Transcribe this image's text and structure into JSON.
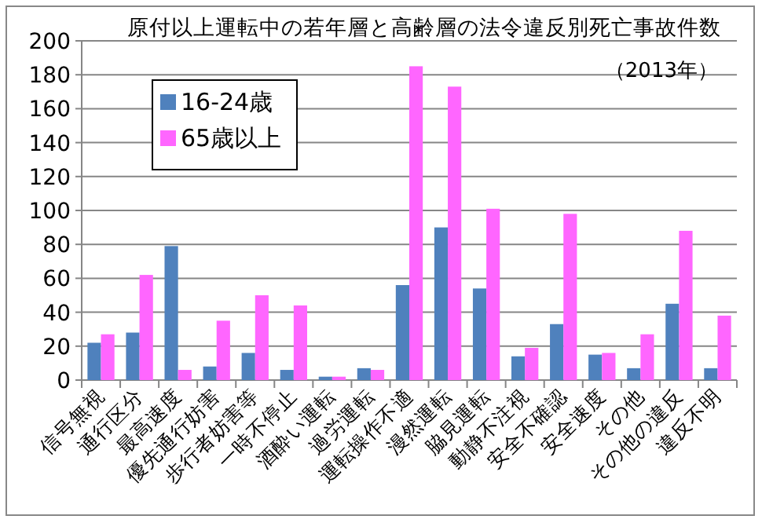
{
  "chart_data": {
    "type": "bar",
    "title": "原付以上運転中の若年層と高齢層の法令違反別死亡事故件数",
    "categories": [
      "信号無視",
      "通行区分",
      "最高速度",
      "優先通行妨害",
      "歩行者妨害等",
      "一時不停止",
      "酒酔い運転",
      "過労運転",
      "運転操作不適",
      "漫然運転",
      "脇見運転",
      "動静不注視",
      "安全不確認",
      "安全速度",
      "その他",
      "その他の違反",
      "違反不明"
    ],
    "series": [
      {
        "name": "16-24歳",
        "color": "#4f81bd",
        "values": [
          22,
          28,
          79,
          8,
          16,
          6,
          2,
          7,
          56,
          90,
          54,
          14,
          33,
          15,
          7,
          45,
          7
        ]
      },
      {
        "name": "65歳以上",
        "color": "#ff66ff",
        "values": [
          27,
          62,
          6,
          35,
          50,
          44,
          2,
          6,
          185,
          173,
          101,
          19,
          98,
          16,
          27,
          88,
          38
        ]
      }
    ],
    "annotations": [
      "（2013年）"
    ],
    "ylim": [
      0,
      200
    ],
    "yticks": [
      0,
      20,
      40,
      60,
      80,
      100,
      120,
      140,
      160,
      180,
      200
    ],
    "grid": "y",
    "legend": "top left"
  }
}
